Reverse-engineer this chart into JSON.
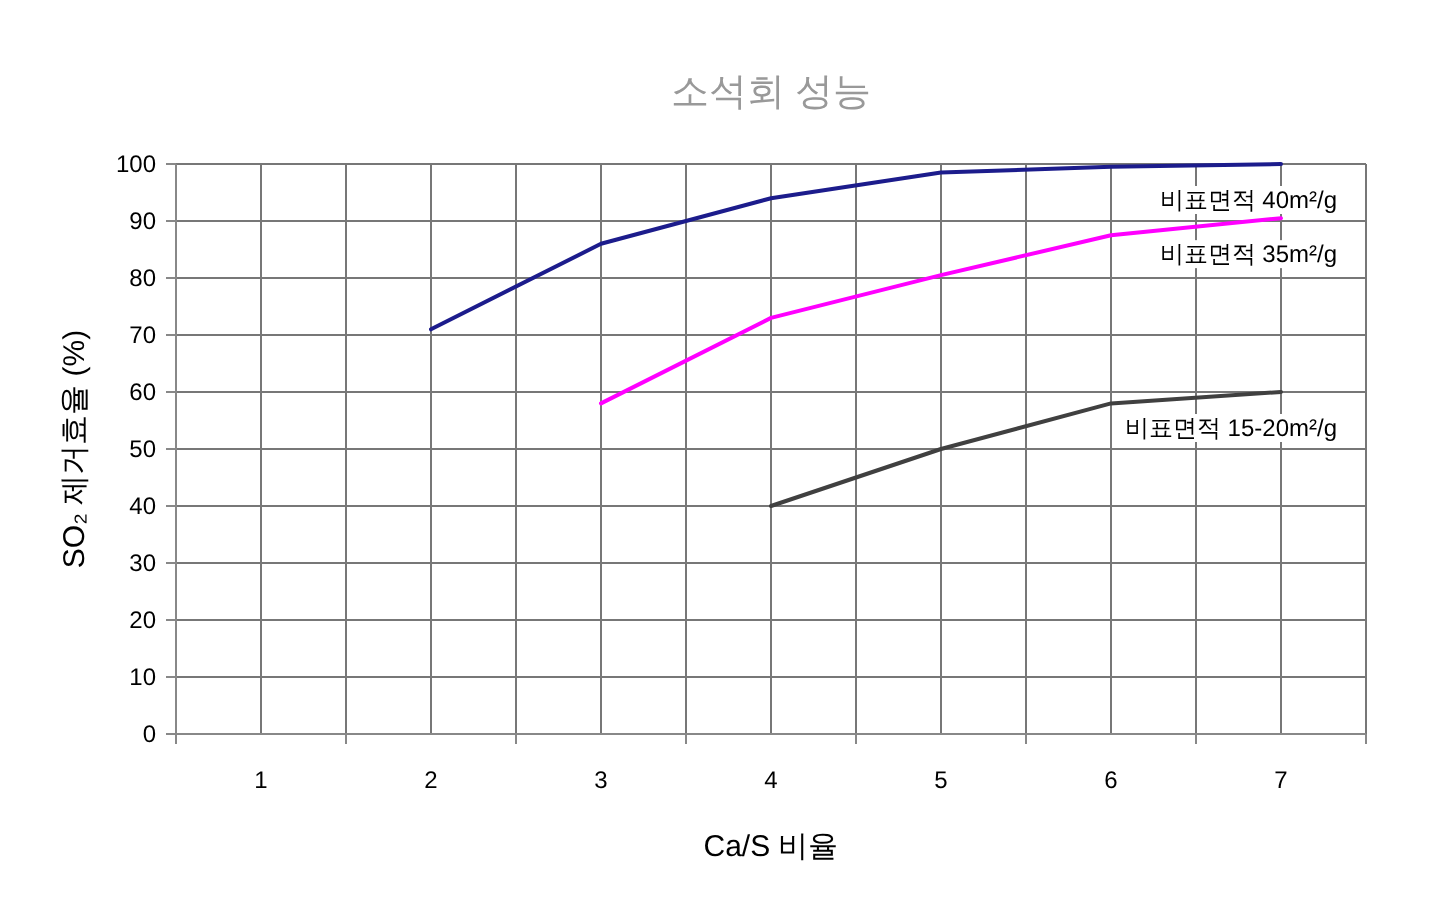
{
  "chart_data": {
    "type": "line",
    "title": "소석회 성능",
    "xlabel": "Ca/S 비율",
    "ylabel": "SO₂ 제거효율 (%)",
    "categories": [
      "1",
      "2",
      "3",
      "4",
      "5",
      "6",
      "7"
    ],
    "series": [
      {
        "name": "비표면적 40m²/g",
        "color": "#1c1c8c",
        "values": [
          null,
          71,
          86,
          94,
          98.5,
          99.5,
          100
        ]
      },
      {
        "name": "비표면적 35m²/g",
        "color": "#ff00ff",
        "values": [
          null,
          null,
          58,
          73,
          80.5,
          87.5,
          90.5
        ]
      },
      {
        "name": "비표면적 15-20m²/g",
        "color": "#404040",
        "values": [
          null,
          null,
          null,
          40,
          50,
          58,
          60
        ]
      }
    ],
    "ylim": [
      0,
      100
    ],
    "yticks": [
      0,
      10,
      20,
      30,
      40,
      50,
      60,
      70,
      80,
      90,
      100
    ],
    "grid": true,
    "marker": "none",
    "line_style": "solid"
  }
}
